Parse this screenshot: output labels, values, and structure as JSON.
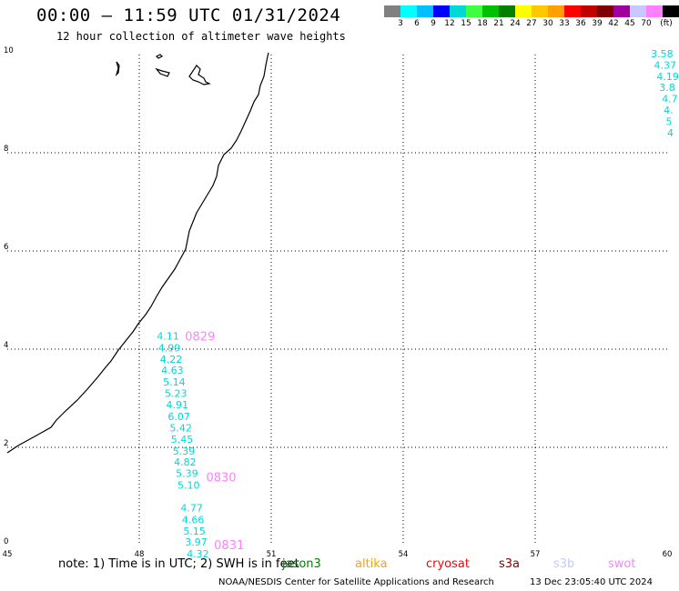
{
  "header": {
    "title": "00:00 — 11:59 UTC 01/31/2024",
    "subtitle": "12 hour collection of altimeter wave heights"
  },
  "legend": {
    "colors": [
      "#808080",
      "#00ffff",
      "#00bfff",
      "#0000ff",
      "#00d8d8",
      "#40ff40",
      "#00c000",
      "#008000",
      "#ffff00",
      "#ffc800",
      "#ffa000",
      "#ff0000",
      "#c00000",
      "#800000",
      "#a000a0",
      "#c8c8ff",
      "#ff80ff",
      "#000000"
    ],
    "labels": [
      "3",
      "6",
      "9",
      "12",
      "15",
      "18",
      "21",
      "24",
      "27",
      "30",
      "33",
      "36",
      "39",
      "42",
      "45",
      "70",
      "(ft)"
    ]
  },
  "map": {
    "x_ticks": [
      "45",
      "48",
      "51",
      "54",
      "57",
      "60"
    ],
    "y_ticks": [
      "10",
      "8",
      "6",
      "4",
      "2",
      "0"
    ],
    "pass_times": [
      {
        "text": "0829",
        "lon": 49.04,
        "lat": 4.27
      },
      {
        "text": "0830",
        "lon": 49.52,
        "lat": 1.4
      },
      {
        "text": "0831",
        "lon": 49.7,
        "lat": 0.02
      }
    ],
    "wave_heights": [
      {
        "text": "4.11",
        "lon": 48.4,
        "lat": 4.27
      },
      {
        "text": "4.99",
        "lon": 48.43,
        "lat": 4.03
      },
      {
        "text": "4.22",
        "lon": 48.47,
        "lat": 3.8
      },
      {
        "text": "4.63",
        "lon": 48.5,
        "lat": 3.57
      },
      {
        "text": "5.14",
        "lon": 48.54,
        "lat": 3.33
      },
      {
        "text": "5.23",
        "lon": 48.58,
        "lat": 3.1
      },
      {
        "text": "4.91",
        "lon": 48.61,
        "lat": 2.87
      },
      {
        "text": "6.07",
        "lon": 48.65,
        "lat": 2.63
      },
      {
        "text": "5.42",
        "lon": 48.69,
        "lat": 2.4
      },
      {
        "text": "5.45",
        "lon": 48.72,
        "lat": 2.17
      },
      {
        "text": "5.39",
        "lon": 48.76,
        "lat": 1.93
      },
      {
        "text": "4.82",
        "lon": 48.79,
        "lat": 1.7
      },
      {
        "text": "5.39",
        "lon": 48.83,
        "lat": 1.47
      },
      {
        "text": "5.10",
        "lon": 48.87,
        "lat": 1.23
      },
      {
        "text": "4.77",
        "lon": 48.94,
        "lat": 0.77
      },
      {
        "text": "4.66",
        "lon": 48.97,
        "lat": 0.53
      },
      {
        "text": "5.15",
        "lon": 49.0,
        "lat": 0.3
      },
      {
        "text": "3.97",
        "lon": 49.04,
        "lat": 0.07
      },
      {
        "text": "4.32",
        "lon": 49.08,
        "lat": -0.17
      }
    ],
    "edge_heights": [
      {
        "text": "3.58",
        "lon": 59.63,
        "lat": 10.02
      },
      {
        "text": "4.37",
        "lon": 59.7,
        "lat": 9.79
      },
      {
        "text": "4.19",
        "lon": 59.76,
        "lat": 9.56
      },
      {
        "text": "3.8",
        "lon": 59.82,
        "lat": 9.33
      },
      {
        "text": "4.7",
        "lon": 59.88,
        "lat": 9.1
      },
      {
        "text": "4.",
        "lon": 59.92,
        "lat": 8.87
      },
      {
        "text": "5",
        "lon": 59.97,
        "lat": 8.64
      },
      {
        "text": "4",
        "lon": 60.0,
        "lat": 8.41
      }
    ]
  },
  "footer": {
    "note": "note: 1) Time is in UTC; 2) SWH is in feet",
    "missions": [
      {
        "name": "jason3",
        "color": "#008000"
      },
      {
        "name": "altika",
        "color": "#ffa000"
      },
      {
        "name": "cryosat",
        "color": "#ff0000"
      },
      {
        "name": "s3a",
        "color": "#800000"
      },
      {
        "name": "s3b",
        "color": "#c8c8ff"
      },
      {
        "name": "swot",
        "color": "#ff80ff"
      }
    ],
    "credit": "NOAA/NESDIS Center for Satellite Applications and Research",
    "timestamp": "13 Dec 23:05:40 UTC 2024"
  }
}
